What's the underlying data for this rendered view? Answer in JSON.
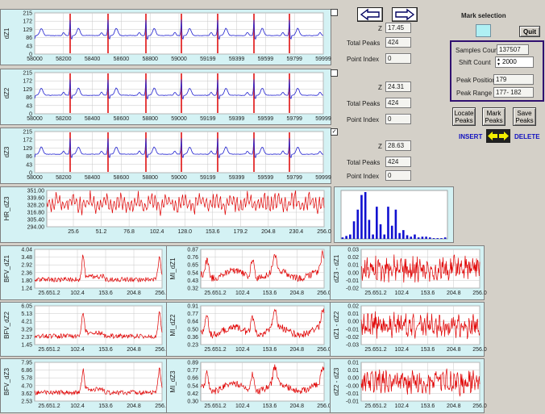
{
  "ecg_panels": [
    {
      "ylabel": "dZ1",
      "yticks": [
        "215",
        "172",
        "129",
        "86",
        "43",
        "0"
      ],
      "xticks": [
        "58000",
        "58200",
        "58400",
        "58600",
        "58800",
        "59000",
        "59199",
        "59399",
        "59599",
        "59799",
        "59999"
      ]
    },
    {
      "ylabel": "dZ2",
      "yticks": [
        "215",
        "172",
        "129",
        "86",
        "43",
        "0"
      ],
      "xticks": [
        "58000",
        "58200",
        "58400",
        "58600",
        "58800",
        "59000",
        "59199",
        "59399",
        "59599",
        "59799",
        "59999"
      ]
    },
    {
      "ylabel": "dZ3",
      "yticks": [
        "215",
        "172",
        "129",
        "86",
        "43",
        "0"
      ],
      "xticks": [
        "58000",
        "58200",
        "58400",
        "58600",
        "58800",
        "59000",
        "59199",
        "59399",
        "59599",
        "59799",
        "59999"
      ]
    }
  ],
  "channel_controls": [
    {
      "z_label": "Z",
      "z_value": "17.45",
      "total_label": "Total Peaks",
      "total_value": "424",
      "point_label": "Point Index",
      "point_value": "0",
      "checked": false
    },
    {
      "z_label": "Z",
      "z_value": "24.31",
      "total_label": "Total Peaks",
      "total_value": "424",
      "point_label": "Point Index",
      "point_value": "0",
      "checked": false
    },
    {
      "z_label": "Z",
      "z_value": "28.63",
      "total_label": "Total Peaks",
      "total_value": "424",
      "point_label": "Point Index",
      "point_value": "0",
      "checked": true
    }
  ],
  "hr_panel": {
    "ylabel": "HR_dZ3",
    "yticks": [
      "351.00",
      "339.60",
      "328.20",
      "316.80",
      "305.40",
      "294.00"
    ],
    "xticks": [
      "25.6",
      "51.2",
      "76.8",
      "102.4",
      "128.0",
      "153.6",
      "179.2",
      "204.8",
      "230.4",
      "256.0"
    ]
  },
  "histogram": {
    "values": [
      2,
      4,
      6,
      24,
      40,
      60,
      64,
      26,
      6,
      44,
      20,
      6,
      44,
      18,
      40,
      8,
      12,
      5,
      3,
      6,
      2,
      3,
      3,
      2,
      1,
      1,
      1,
      2
    ]
  },
  "bfv_panels": [
    {
      "ylabel": "BFV_dZ1",
      "yticks": [
        "4.04",
        "3.48",
        "2.92",
        "2.36",
        "1.80",
        "1.24"
      ],
      "xticks": [
        "25.651.2",
        "102.4",
        "153.6",
        "204.8",
        "256.0"
      ]
    },
    {
      "ylabel": "BFV_dZ2",
      "yticks": [
        "6.05",
        "5.13",
        "4.21",
        "3.29",
        "2.37",
        "1.45"
      ],
      "xticks": [
        "25.651.2",
        "102.4",
        "153.6",
        "204.8",
        "256.0"
      ]
    },
    {
      "ylabel": "BFV_dZ3",
      "yticks": [
        "7.95",
        "6.86",
        "5.78",
        "4.70",
        "3.62",
        "2.53"
      ],
      "xticks": [
        "25.651.2",
        "102.4",
        "153.6",
        "204.8",
        "256.0"
      ]
    }
  ],
  "mi_panels": [
    {
      "ylabel": "MI_dZ1",
      "yticks": [
        "0.87",
        "0.76",
        "0.65",
        "0.54",
        "0.43",
        "0.32"
      ],
      "xticks": [
        "25.651.2",
        "102.4",
        "153.6",
        "204.8",
        "256.0"
      ]
    },
    {
      "ylabel": "MI_dZ2",
      "yticks": [
        "0.91",
        "0.77",
        "0.64",
        "0.50",
        "0.36",
        "0.23"
      ],
      "xticks": [
        "25.651.2",
        "102.4",
        "153.6",
        "204.8",
        "256.0"
      ]
    },
    {
      "ylabel": "MI_dZ3",
      "yticks": [
        "0.89",
        "0.77",
        "0.66",
        "0.54",
        "0.42",
        "0.30"
      ],
      "xticks": [
        "25.651.2",
        "102.4",
        "153.6",
        "204.8",
        "256.0"
      ]
    }
  ],
  "diff_panels": [
    {
      "ylabel": "dZ3 - dZ1",
      "yticks": [
        "0.03",
        "0.02",
        "0.01",
        "0.00",
        "-0.01",
        "-0.02"
      ],
      "xticks": [
        "25.651.2",
        "102.4",
        "153.6",
        "204.8",
        "256.0"
      ]
    },
    {
      "ylabel": "dZ1 - dZ2",
      "yticks": [
        "0.02",
        "0.01",
        "0.00",
        "-0.01",
        "-0.02",
        "-0.03"
      ],
      "xticks": [
        "25.651.2",
        "102.4",
        "153.6",
        "204.8",
        "256.0"
      ]
    },
    {
      "ylabel": "dZ2 - dZ3",
      "yticks": [
        "0.01",
        "0.01",
        "0.00",
        "-0.00",
        "-0.01",
        "-0.01"
      ],
      "xticks": [
        "25.651.2",
        "102.4",
        "153.6",
        "204.8",
        "256.0"
      ]
    }
  ],
  "controls": {
    "mark_selection_label": "Mark selection",
    "quit_label": "Quit",
    "samples_count_label": "Samples Count",
    "samples_count_value": "137507",
    "shift_count_label": "Shift Count",
    "shift_count_value": "2000",
    "peak_position_label": "Peak Position",
    "peak_position_value": "179",
    "peak_range_label": "Peak Range",
    "peak_range_value": "177- 182",
    "locate_peaks_label": "Locate\nPeaks",
    "mark_peaks_label": "Mark\nPeaks",
    "save_peaks_label": "Save\nPeaks",
    "insert_label": "INSERT",
    "delete_label": "DELETE"
  },
  "colors": {
    "panel_bg": "#d4f2f4",
    "ecg_line": "#2020d0",
    "peak_marker": "#e01010",
    "red_trace": "#e00000",
    "hist_bar": "#1010d0",
    "purple_border": "#301070",
    "insert_text": "#1010c0",
    "arrow_yellow": "#f4f000"
  }
}
